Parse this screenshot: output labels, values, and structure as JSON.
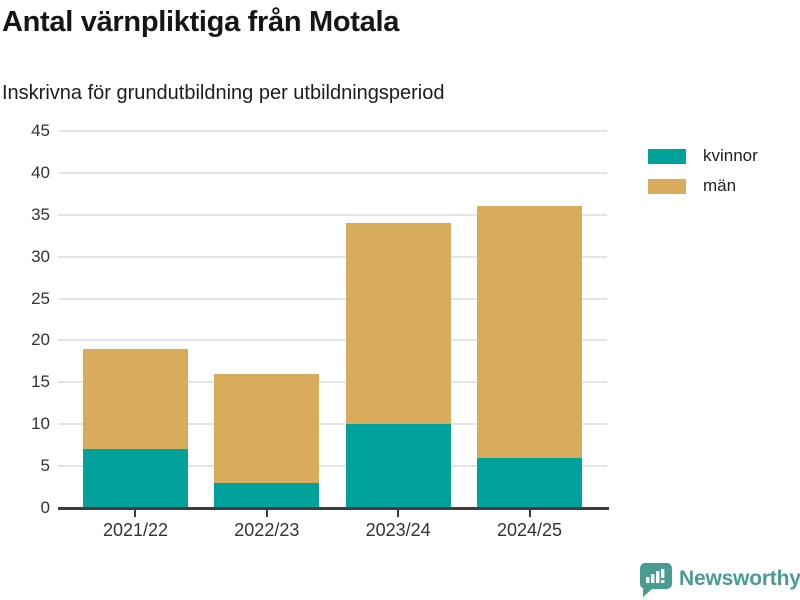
{
  "header": {
    "title": "Antal värnpliktiga från Motala",
    "subtitle": "Inskrivna för grundutbildning per utbildningsperiod"
  },
  "chart_data": {
    "type": "bar",
    "stacked": true,
    "title": "Antal värnpliktiga från Motala",
    "subtitle": "Inskrivna för grundutbildning per utbildningsperiod",
    "categories": [
      "2021/22",
      "2022/23",
      "2023/24",
      "2024/25"
    ],
    "series": [
      {
        "name": "kvinnor",
        "color": "#00a29b",
        "values": [
          7,
          3,
          10,
          6
        ]
      },
      {
        "name": "män",
        "color": "#d9ab5c",
        "values": [
          12,
          13,
          24,
          30
        ]
      }
    ],
    "totals": [
      19,
      16,
      34,
      36
    ],
    "xlabel": "",
    "ylabel": "",
    "ylim": [
      0,
      45
    ],
    "ytick_step": 5,
    "yticks": [
      0,
      5,
      10,
      15,
      20,
      25,
      30,
      35,
      40,
      45
    ],
    "grid": "horizontal",
    "legend_position": "top-right"
  },
  "colors": {
    "kvinnor": "#00a29b",
    "man": "#d9ab5c",
    "gridline": "#e4e4e4",
    "axis": "#3d3d3d",
    "brand": "#4a9c92"
  },
  "footer": {
    "brand": "Newsworthy"
  }
}
